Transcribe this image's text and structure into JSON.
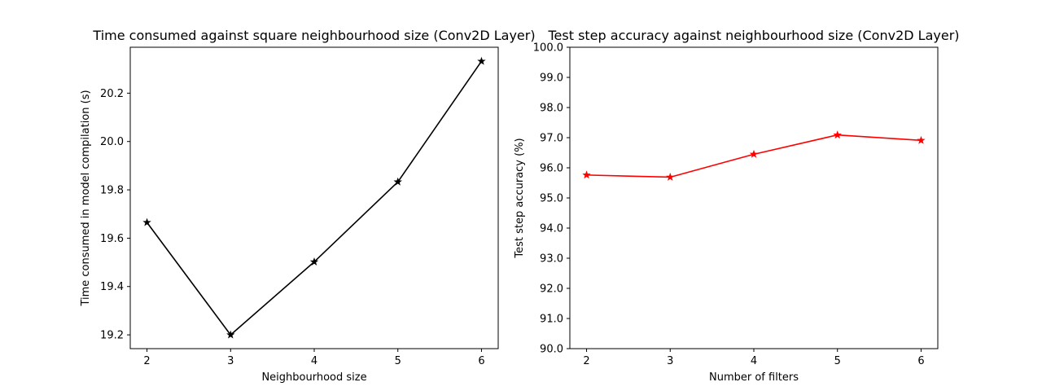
{
  "chart_data": [
    {
      "type": "line",
      "title": "Time consumed against square neighbourhood size (Conv2D Layer)",
      "xlabel": "Neighbourhood size",
      "ylabel": "Time consumed in model compilation (s)",
      "x": [
        2,
        3,
        4,
        5,
        6
      ],
      "series": [
        {
          "values": [
            19.665,
            19.2,
            19.502,
            19.833,
            20.332
          ],
          "color": "#000000",
          "marker": "star"
        }
      ],
      "xticks": [
        "2",
        "3",
        "4",
        "5",
        "6"
      ],
      "yticks": [
        "19.2",
        "19.4",
        "19.6",
        "19.8",
        "20.0",
        "20.2"
      ],
      "xlim": [
        1.8,
        6.2
      ],
      "ylim": [
        19.143,
        20.39
      ],
      "grid": false
    },
    {
      "type": "line",
      "title": "Test step accuracy against neighbourhood size (Conv2D Layer)",
      "xlabel": "Number of filters",
      "ylabel": "Test step accuracy (%)",
      "x": [
        2,
        3,
        4,
        5,
        6
      ],
      "series": [
        {
          "values": [
            95.76,
            95.69,
            96.45,
            97.09,
            96.91
          ],
          "color": "#ff0000",
          "marker": "star"
        }
      ],
      "xticks": [
        "2",
        "3",
        "4",
        "5",
        "6"
      ],
      "yticks": [
        "90.0",
        "91.0",
        "92.0",
        "93.0",
        "94.0",
        "95.0",
        "96.0",
        "97.0",
        "98.0",
        "99.0",
        "100.0"
      ],
      "xlim": [
        1.8,
        6.2
      ],
      "ylim": [
        90,
        100
      ],
      "grid": false
    }
  ]
}
